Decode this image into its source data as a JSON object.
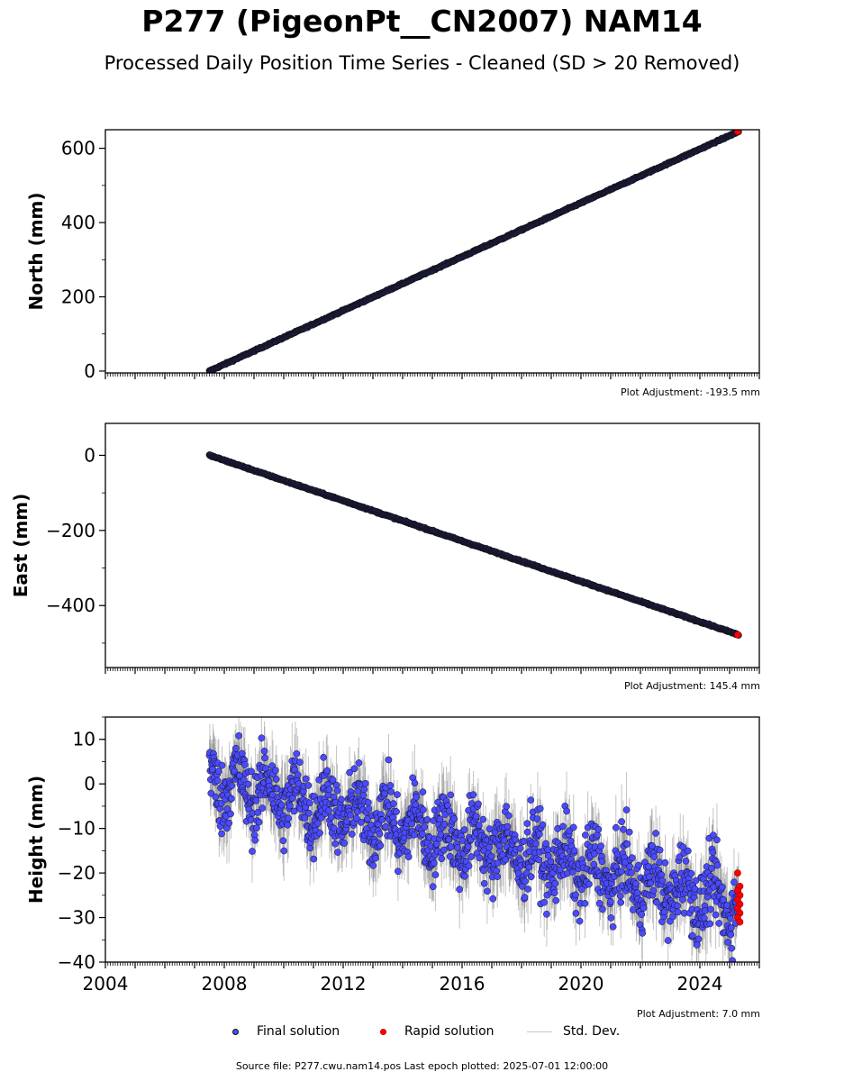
{
  "title": "P277 (PigeonPt__CN2007) NAM14",
  "subtitle": "Processed Daily Position Time Series - Cleaned (SD > 20 Removed)",
  "colors": {
    "final": "#4a4aff",
    "rapid": "#ff0000",
    "stddev": "#c8c8c8",
    "marker_edge": "#111111"
  },
  "legend": {
    "final": "Final solution",
    "rapid": "Rapid solution",
    "stddev": "Std. Dev."
  },
  "footer": "Source file: P277.cwu.nam14.pos  Last epoch plotted: 2025-07-01 12:00:00",
  "chart_data": [
    {
      "type": "scatter",
      "ylabel": "North (mm)",
      "xlim": [
        2004,
        2026
      ],
      "ylim": [
        -5,
        650
      ],
      "yticks": [
        0,
        200,
        400,
        600
      ],
      "ytick_labels": [
        "0",
        "200",
        "400",
        "600"
      ],
      "adjustment": "Plot Adjustment: -193.5 mm",
      "trend": {
        "start": [
          2007.5,
          0
        ],
        "end": [
          2025.3,
          645
        ]
      },
      "rapid_points": [
        [
          2025.3,
          645
        ]
      ]
    },
    {
      "type": "scatter",
      "ylabel": "East (mm)",
      "xlim": [
        2004,
        2026
      ],
      "ylim": [
        -565,
        85
      ],
      "yticks": [
        0,
        -200,
        -400
      ],
      "ytick_labels": [
        "0",
        "−200",
        "−400"
      ],
      "adjustment": "Plot Adjustment: 145.4 mm",
      "trend": {
        "start": [
          2007.5,
          0
        ],
        "end": [
          2025.3,
          -478
        ]
      },
      "rapid_points": [
        [
          2025.3,
          -478
        ]
      ]
    },
    {
      "type": "scatter",
      "ylabel": "Height (mm)",
      "xlim": [
        2004,
        2026
      ],
      "ylim": [
        -40,
        15
      ],
      "yticks": [
        10,
        0,
        -10,
        -20,
        -30,
        -40
      ],
      "ytick_labels": [
        "10",
        "0",
        "−10",
        "−20",
        "−30",
        "−40"
      ],
      "xticks": [
        2004,
        2008,
        2012,
        2016,
        2020,
        2024
      ],
      "xtick_labels": [
        "2004",
        "2008",
        "2012",
        "2016",
        "2020",
        "2024"
      ],
      "adjustment": "Plot Adjustment: 7.0 mm",
      "trend": {
        "start": [
          2007.5,
          1
        ],
        "end": [
          2025.3,
          -27
        ]
      },
      "annual_amplitude": 4,
      "noise": 4,
      "rapid_points": [
        [
          2025.3,
          -20
        ],
        [
          2025.3,
          -23
        ],
        [
          2025.3,
          -24
        ],
        [
          2025.3,
          -25
        ],
        [
          2025.3,
          -26
        ],
        [
          2025.3,
          -27
        ],
        [
          2025.3,
          -28
        ],
        [
          2025.3,
          -29
        ],
        [
          2025.3,
          -30
        ],
        [
          2025.3,
          -31
        ]
      ]
    }
  ]
}
